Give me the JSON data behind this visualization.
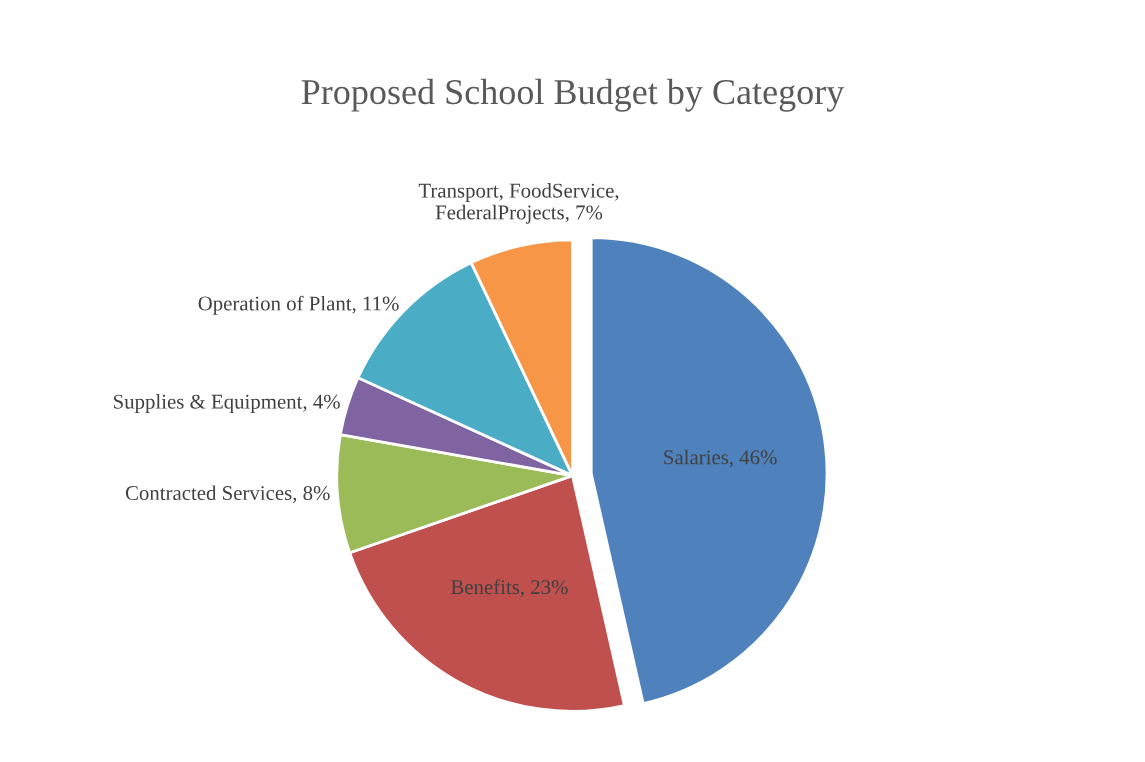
{
  "chart_data": {
    "type": "pie",
    "title": "Proposed School Budget by Category",
    "categories": [
      "Salaries",
      "Benefits",
      "Contracted Services",
      "Supplies & Equipment",
      "Operation of Plant",
      "Transport, FoodService, FederalProjects"
    ],
    "values": [
      46,
      23,
      8,
      4,
      11,
      7
    ],
    "value_labels": [
      "46%",
      "23%",
      "8%",
      "4%",
      "11%",
      "7%"
    ],
    "colors": [
      "#4f81bd",
      "#c0504d",
      "#9bbb59",
      "#8064a2",
      "#4bacc6",
      "#f79646"
    ]
  }
}
